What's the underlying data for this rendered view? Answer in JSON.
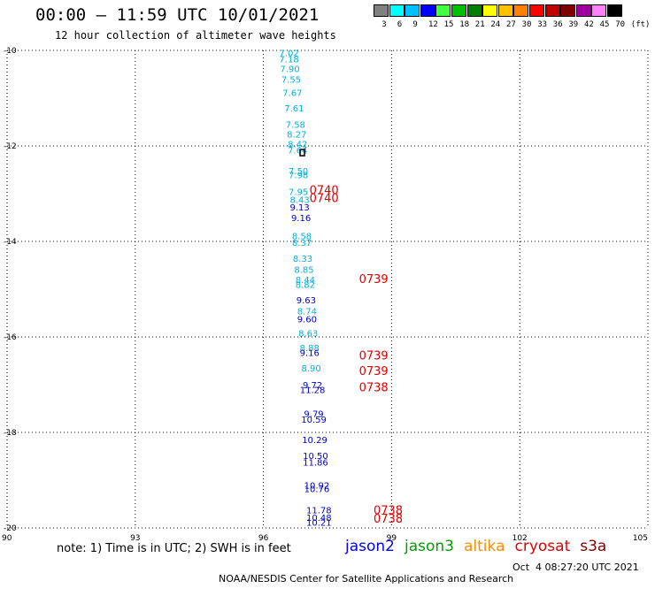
{
  "header": {
    "title": "00:00 – 11:59 UTC 10/01/2021",
    "subtitle": "12 hour collection of altimeter wave heights"
  },
  "legend": {
    "colors": [
      "#808080",
      "#00ffff",
      "#00c0ff",
      "#0000ff",
      "#40ff40",
      "#00c000",
      "#008000",
      "#ffff00",
      "#ffc000",
      "#ff8000",
      "#ff0000",
      "#c00000",
      "#800000",
      "#a000a0",
      "#ff80ff",
      "#000000"
    ],
    "labels": [
      "3",
      "6",
      "9",
      "12",
      "15",
      "18",
      "21",
      "24",
      "27",
      "30",
      "33",
      "36",
      "39",
      "42",
      "45",
      "70",
      "(ft)"
    ]
  },
  "chart_data": {
    "type": "scatter",
    "title": "00:00 – 11:59 UTC 10/01/2021",
    "xlim": [
      90,
      105
    ],
    "ylim": [
      -20,
      -10
    ],
    "xticks": [
      "90",
      "93",
      "96",
      "99",
      "102",
      "105"
    ],
    "yticks": [
      "-10",
      "-12",
      "-14",
      "-16",
      "-18",
      "-20"
    ],
    "grid": true,
    "points": [
      {
        "x": 96.6,
        "y": -10.05,
        "v": "7.02",
        "s": "jason3"
      },
      {
        "x": 96.6,
        "y": -10.18,
        "v": "7.18",
        "s": "jason3"
      },
      {
        "x": 96.62,
        "y": -10.38,
        "v": "7.90",
        "s": "jason3"
      },
      {
        "x": 96.65,
        "y": -10.6,
        "v": "7.55",
        "s": "jason3"
      },
      {
        "x": 96.68,
        "y": -10.88,
        "v": "7.67",
        "s": "jason3"
      },
      {
        "x": 96.72,
        "y": -11.2,
        "v": "7.61",
        "s": "jason3"
      },
      {
        "x": 96.75,
        "y": -11.55,
        "v": "7.58",
        "s": "jason3"
      },
      {
        "x": 96.78,
        "y": -11.75,
        "v": "8.27",
        "s": "jason3"
      },
      {
        "x": 96.8,
        "y": -11.95,
        "v": "8.42",
        "s": "jason3"
      },
      {
        "x": 96.8,
        "y": -12.08,
        "v": "7.64",
        "s": "jason3"
      },
      {
        "x": 96.82,
        "y": -12.52,
        "v": "7.50",
        "s": "jason3"
      },
      {
        "x": 96.82,
        "y": -12.6,
        "v": "7.98",
        "s": "jason3"
      },
      {
        "x": 96.82,
        "y": -12.95,
        "v": "7.95",
        "s": "jason3"
      },
      {
        "x": 96.85,
        "y": -13.12,
        "v": "8.43",
        "s": "jason3"
      },
      {
        "x": 96.85,
        "y": -13.28,
        "v": "9.13",
        "s": "jason2"
      },
      {
        "x": 96.88,
        "y": -13.5,
        "v": "9.16",
        "s": "jason2"
      },
      {
        "x": 96.9,
        "y": -13.88,
        "v": "8.58",
        "s": "jason3"
      },
      {
        "x": 96.9,
        "y": -14.02,
        "v": "8.37",
        "s": "jason3"
      },
      {
        "x": 96.92,
        "y": -14.35,
        "v": "8.33",
        "s": "jason3"
      },
      {
        "x": 96.95,
        "y": -14.58,
        "v": "8.85",
        "s": "jason3"
      },
      {
        "x": 96.98,
        "y": -14.8,
        "v": "8.44",
        "s": "jason3"
      },
      {
        "x": 96.98,
        "y": -14.9,
        "v": "8.82",
        "s": "jason3"
      },
      {
        "x": 97.0,
        "y": -15.22,
        "v": "9.63",
        "s": "jason2"
      },
      {
        "x": 97.02,
        "y": -15.45,
        "v": "8.74",
        "s": "jason3"
      },
      {
        "x": 97.02,
        "y": -15.62,
        "v": "9.60",
        "s": "jason2"
      },
      {
        "x": 97.05,
        "y": -15.92,
        "v": "8.63",
        "s": "jason3"
      },
      {
        "x": 97.08,
        "y": -16.22,
        "v": "8.88",
        "s": "jason3"
      },
      {
        "x": 97.08,
        "y": -16.32,
        "v": "9.16",
        "s": "jason2"
      },
      {
        "x": 97.12,
        "y": -16.65,
        "v": "8.90",
        "s": "jason3"
      },
      {
        "x": 97.15,
        "y": -17.0,
        "v": "9.72",
        "s": "jason2"
      },
      {
        "x": 97.15,
        "y": -17.1,
        "v": "11.28",
        "s": "jason2"
      },
      {
        "x": 97.18,
        "y": -17.6,
        "v": "9.79",
        "s": "jason2"
      },
      {
        "x": 97.18,
        "y": -17.72,
        "v": "10.59",
        "s": "jason2"
      },
      {
        "x": 97.2,
        "y": -18.15,
        "v": "10.29",
        "s": "jason2"
      },
      {
        "x": 97.22,
        "y": -18.48,
        "v": "10.50",
        "s": "jason2"
      },
      {
        "x": 97.22,
        "y": -18.62,
        "v": "11.86",
        "s": "jason2"
      },
      {
        "x": 97.25,
        "y": -19.1,
        "v": "10.92",
        "s": "jason2"
      },
      {
        "x": 97.25,
        "y": -19.18,
        "v": "10.76",
        "s": "jason2"
      },
      {
        "x": 97.3,
        "y": -19.62,
        "v": "11.78",
        "s": "jason2"
      },
      {
        "x": 97.3,
        "y": -19.78,
        "v": "10.48",
        "s": "jason2"
      },
      {
        "x": 97.3,
        "y": -19.88,
        "v": "10.21",
        "s": "jason2"
      }
    ],
    "time_labels": [
      {
        "x": 97.42,
        "y": -12.92,
        "t": "0740"
      },
      {
        "x": 97.42,
        "y": -13.08,
        "t": "0740"
      },
      {
        "x": 98.58,
        "y": -14.78,
        "t": "0739"
      },
      {
        "x": 98.58,
        "y": -16.38,
        "t": "0739"
      },
      {
        "x": 98.58,
        "y": -16.7,
        "t": "0739"
      },
      {
        "x": 98.58,
        "y": -17.05,
        "t": "0738"
      },
      {
        "x": 98.92,
        "y": -19.62,
        "t": "0738"
      },
      {
        "x": 98.92,
        "y": -19.8,
        "t": "0738"
      }
    ],
    "marker": {
      "x": 96.92,
      "y": -12.15
    },
    "series": [
      {
        "name": "jason2",
        "color": "#0000cc"
      },
      {
        "name": "jason3",
        "color": "#00b0d8"
      }
    ]
  },
  "satellites": [
    {
      "name": "jason2",
      "color": "#0000ff"
    },
    {
      "name": "jason3",
      "color": "#00a000"
    },
    {
      "name": "altika",
      "color": "#ff8c00"
    },
    {
      "name": "cryosat",
      "color": "#e00000"
    },
    {
      "name": "s3a",
      "color": "#800000"
    }
  ],
  "note": "note: 1) Time is in UTC; 2) SWH is in feet",
  "footer": {
    "credit": "NOAA/NESDIS Center for Satellite Applications and Research",
    "timestamp": "Oct  4 08:27:20 UTC 2021"
  },
  "colors": {
    "time_label": "#dd0000",
    "grid": "#000000"
  }
}
